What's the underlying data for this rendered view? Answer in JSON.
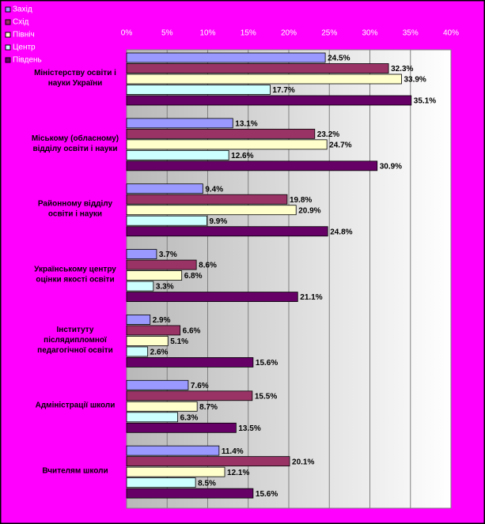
{
  "chart_data": {
    "type": "hbar",
    "categories": [
      "Міністерству освіти і науки України",
      "Міському (обласному) відділу освіти і науки",
      "Районному відділу освіти і науки",
      "Українському центру оцінки якості освіти",
      "Інституту післядипломної педагогічної освіти",
      "Адміністрації школи",
      "Вчителям школи"
    ],
    "series": [
      {
        "name": "Захід",
        "color": "#9999ff",
        "values": [
          24.5,
          13.1,
          9.4,
          3.7,
          2.9,
          7.6,
          11.4
        ],
        "value_labels": [
          "24.5%",
          "13.1%",
          "9.4%",
          "3.7%",
          "2.9%",
          "7.6%",
          "11.4%"
        ]
      },
      {
        "name": "Схід",
        "color": "#993366",
        "values": [
          32.3,
          23.2,
          19.8,
          8.6,
          6.6,
          15.5,
          20.1
        ],
        "value_labels": [
          "32.3%",
          "23.2%",
          "19.8%",
          "8.6%",
          "6.6%",
          "15.5%",
          "20.1%"
        ]
      },
      {
        "name": "Північ",
        "color": "#ffffcc",
        "values": [
          33.9,
          24.7,
          20.9,
          6.8,
          5.1,
          8.7,
          12.1
        ],
        "value_labels": [
          "33.9%",
          "24.7%",
          "20.9%",
          "6.8%",
          "5.1%",
          "8.7%",
          "12.1%"
        ]
      },
      {
        "name": "Центр",
        "color": "#ccffff",
        "values": [
          17.7,
          12.6,
          9.9,
          3.3,
          2.6,
          6.3,
          8.5
        ],
        "value_labels": [
          "17.7%",
          "12.6%",
          "9.9%",
          "3.3%",
          "2.6%",
          "6.3%",
          "8.5%"
        ]
      },
      {
        "name": "Південь",
        "color": "#660066",
        "values": [
          35.1,
          30.9,
          24.8,
          21.1,
          15.6,
          13.5,
          15.6
        ],
        "value_labels": [
          "35.1%",
          "30.9%",
          "24.8%",
          "21.1%",
          "15.6%",
          "13.5%",
          "15.6%"
        ]
      }
    ],
    "xlim": [
      0,
      40
    ],
    "xticks": [
      {
        "value": 0,
        "label": "0%"
      },
      {
        "value": 5,
        "label": "5%"
      },
      {
        "value": 10,
        "label": "10%"
      },
      {
        "value": 15,
        "label": "15%"
      },
      {
        "value": 20,
        "label": "20%"
      },
      {
        "value": 25,
        "label": "25%"
      },
      {
        "value": 30,
        "label": "30%"
      },
      {
        "value": 35,
        "label": "35%"
      },
      {
        "value": 40,
        "label": "40%"
      }
    ],
    "grid": true,
    "legend": "top-left"
  }
}
